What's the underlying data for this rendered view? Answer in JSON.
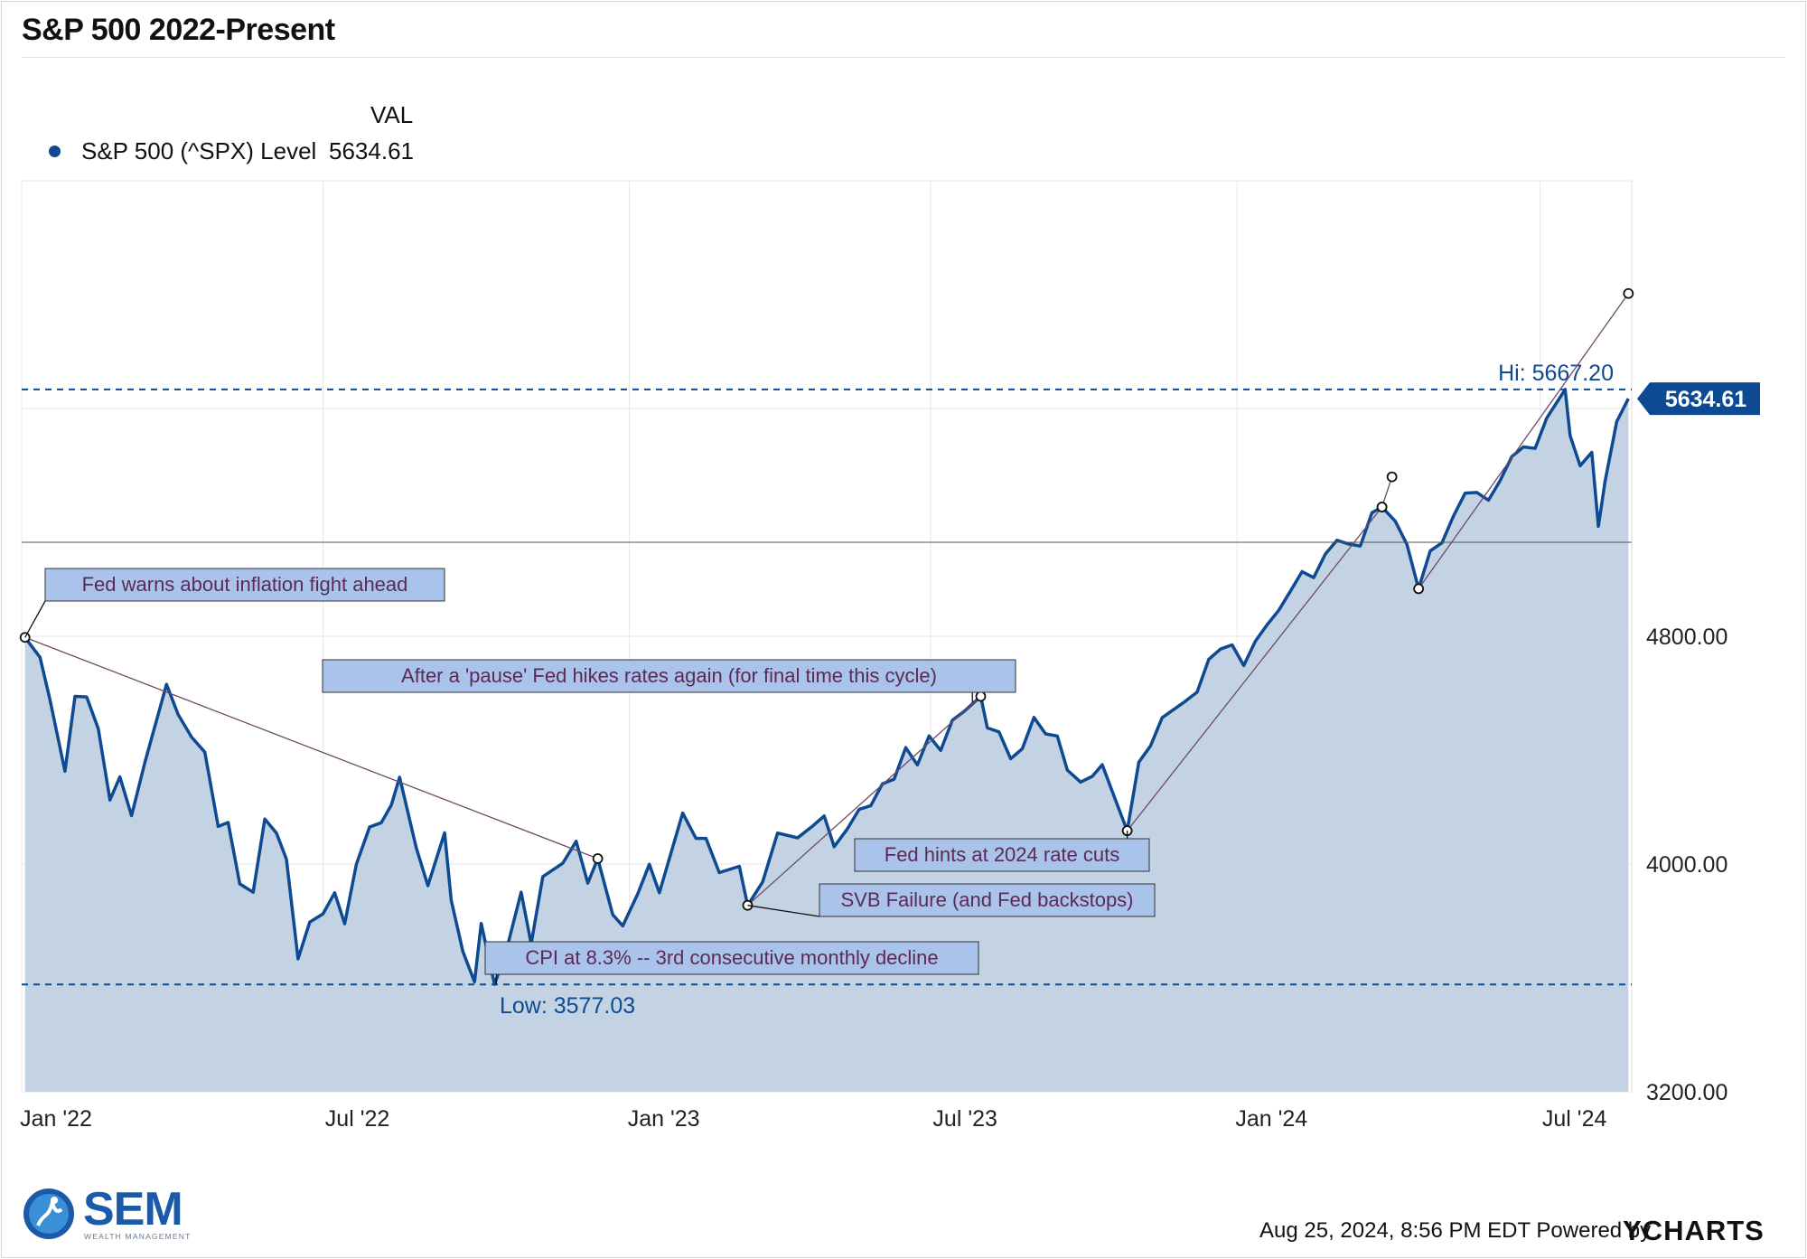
{
  "title": "S&P 500 2022-Present",
  "legend": {
    "column_header": "VAL",
    "series_name": "S&P 500 (^SPX) Level",
    "series_value": "5634.61"
  },
  "footer": {
    "date_text": "Aug 25, 2024, 8:56 PM EDT Powered by",
    "brand": "YCHARTS"
  },
  "logo": {
    "name": "SEM",
    "subtitle": "WEALTH MANAGEMENT"
  },
  "colors": {
    "line": "#0d4a91",
    "area": "#c4d3e3",
    "annotation_fill": "#a9c3ea",
    "annotation_text": "#5c2a55",
    "badge": "#0d4a91"
  },
  "chart_data": {
    "type": "area",
    "title": "S&P 500 2022-Present",
    "xlabel": "",
    "ylabel": "",
    "x_tick_labels": [
      "Jan '22",
      "Jul '22",
      "Jan '23",
      "Jul '23",
      "Jan '24",
      "Jul '24"
    ],
    "y_tick_labels": [
      "3200.00",
      "4000.00",
      "4800.00"
    ],
    "y_ticks": [
      3200,
      4000,
      4800
    ],
    "ylim": [
      3200,
      6400
    ],
    "xlim": [
      "2022-01-01",
      "2024-08-25"
    ],
    "grid": true,
    "legend_position": "top-left",
    "current_label": "5634.61",
    "current_value": 5634.61,
    "high_label": "Hi: 5667.20",
    "high_value": 5667.2,
    "low_label": "Low: 3577.03",
    "low_value": 3577.03,
    "reference_line_value": 5130,
    "series": [
      {
        "name": "S&P 500 (^SPX) Level",
        "points": [
          [
            "2022-01-03",
            4796
          ],
          [
            "2022-01-12",
            4726
          ],
          [
            "2022-01-18",
            4577
          ],
          [
            "2022-01-27",
            4326
          ],
          [
            "2022-02-02",
            4589
          ],
          [
            "2022-02-09",
            4587
          ],
          [
            "2022-02-16",
            4475
          ],
          [
            "2022-02-23",
            4225
          ],
          [
            "2022-03-01",
            4306
          ],
          [
            "2022-03-08",
            4170
          ],
          [
            "2022-03-16",
            4357
          ],
          [
            "2022-03-29",
            4631
          ],
          [
            "2022-04-05",
            4525
          ],
          [
            "2022-04-13",
            4446
          ],
          [
            "2022-04-21",
            4393
          ],
          [
            "2022-04-29",
            4132
          ],
          [
            "2022-05-05",
            4146
          ],
          [
            "2022-05-12",
            3930
          ],
          [
            "2022-05-20",
            3901
          ],
          [
            "2022-05-27",
            4158
          ],
          [
            "2022-06-03",
            4109
          ],
          [
            "2022-06-09",
            4017
          ],
          [
            "2022-06-16",
            3667
          ],
          [
            "2022-06-23",
            3796
          ],
          [
            "2022-07-01",
            3825
          ],
          [
            "2022-07-08",
            3899
          ],
          [
            "2022-07-14",
            3790
          ],
          [
            "2022-07-21",
            3999
          ],
          [
            "2022-07-29",
            4130
          ],
          [
            "2022-08-05",
            4145
          ],
          [
            "2022-08-11",
            4207
          ],
          [
            "2022-08-16",
            4305
          ],
          [
            "2022-08-26",
            4057
          ],
          [
            "2022-09-02",
            3924
          ],
          [
            "2022-09-12",
            4110
          ],
          [
            "2022-09-16",
            3873
          ],
          [
            "2022-09-23",
            3693
          ],
          [
            "2022-09-30",
            3586
          ],
          [
            "2022-10-04",
            3791
          ],
          [
            "2022-10-12",
            3577
          ],
          [
            "2022-10-19",
            3695
          ],
          [
            "2022-10-28",
            3901
          ],
          [
            "2022-11-03",
            3720
          ],
          [
            "2022-11-10",
            3956
          ],
          [
            "2022-11-22",
            4003
          ],
          [
            "2022-11-30",
            4080
          ],
          [
            "2022-12-07",
            3933
          ],
          [
            "2022-12-13",
            4019
          ],
          [
            "2022-12-22",
            3822
          ],
          [
            "2022-12-28",
            3783
          ],
          [
            "2023-01-06",
            3895
          ],
          [
            "2023-01-13",
            3999
          ],
          [
            "2023-01-19",
            3899
          ],
          [
            "2023-02-02",
            4179
          ],
          [
            "2023-02-10",
            4090
          ],
          [
            "2023-02-16",
            4090
          ],
          [
            "2023-02-24",
            3970
          ],
          [
            "2023-03-02",
            3981
          ],
          [
            "2023-03-08",
            3992
          ],
          [
            "2023-03-13",
            3855
          ],
          [
            "2023-03-22",
            3937
          ],
          [
            "2023-03-31",
            4109
          ],
          [
            "2023-04-12",
            4092
          ],
          [
            "2023-04-21",
            4133
          ],
          [
            "2023-04-28",
            4169
          ],
          [
            "2023-05-04",
            4061
          ],
          [
            "2023-05-12",
            4124
          ],
          [
            "2023-05-19",
            4192
          ],
          [
            "2023-05-26",
            4205
          ],
          [
            "2023-06-02",
            4282
          ],
          [
            "2023-06-09",
            4298
          ],
          [
            "2023-06-16",
            4409
          ],
          [
            "2023-06-23",
            4348
          ],
          [
            "2023-06-30",
            4450
          ],
          [
            "2023-07-07",
            4399
          ],
          [
            "2023-07-14",
            4505
          ],
          [
            "2023-07-21",
            4536
          ],
          [
            "2023-07-31",
            4589
          ],
          [
            "2023-08-04",
            4478
          ],
          [
            "2023-08-11",
            4464
          ],
          [
            "2023-08-18",
            4370
          ],
          [
            "2023-08-25",
            4405
          ],
          [
            "2023-09-01",
            4515
          ],
          [
            "2023-09-08",
            4457
          ],
          [
            "2023-09-15",
            4450
          ],
          [
            "2023-09-21",
            4330
          ],
          [
            "2023-09-29",
            4288
          ],
          [
            "2023-10-06",
            4308
          ],
          [
            "2023-10-12",
            4349
          ],
          [
            "2023-10-20",
            4224
          ],
          [
            "2023-10-27",
            4117
          ],
          [
            "2023-11-03",
            4358
          ],
          [
            "2023-11-10",
            4415
          ],
          [
            "2023-11-17",
            4514
          ],
          [
            "2023-11-30",
            4568
          ],
          [
            "2023-12-08",
            4604
          ],
          [
            "2023-12-15",
            4719
          ],
          [
            "2023-12-22",
            4755
          ],
          [
            "2023-12-29",
            4770
          ],
          [
            "2024-01-05",
            4697
          ],
          [
            "2024-01-12",
            4783
          ],
          [
            "2024-01-19",
            4840
          ],
          [
            "2024-01-26",
            4891
          ],
          [
            "2024-02-02",
            4958
          ],
          [
            "2024-02-09",
            5027
          ],
          [
            "2024-02-16",
            5006
          ],
          [
            "2024-02-23",
            5089
          ],
          [
            "2024-03-01",
            5137
          ],
          [
            "2024-03-08",
            5124
          ],
          [
            "2024-03-15",
            5117
          ],
          [
            "2024-03-22",
            5234
          ],
          [
            "2024-03-28",
            5254
          ],
          [
            "2024-04-05",
            5204
          ],
          [
            "2024-04-12",
            5123
          ],
          [
            "2024-04-19",
            4967
          ],
          [
            "2024-04-26",
            5100
          ],
          [
            "2024-05-03",
            5128
          ],
          [
            "2024-05-10",
            5223
          ],
          [
            "2024-05-17",
            5303
          ],
          [
            "2024-05-24",
            5305
          ],
          [
            "2024-05-31",
            5278
          ],
          [
            "2024-06-07",
            5347
          ],
          [
            "2024-06-14",
            5431
          ],
          [
            "2024-06-21",
            5465
          ],
          [
            "2024-06-28",
            5460
          ],
          [
            "2024-07-05",
            5567
          ],
          [
            "2024-07-16",
            5667
          ],
          [
            "2024-07-19",
            5505
          ],
          [
            "2024-07-25",
            5399
          ],
          [
            "2024-08-01",
            5446
          ],
          [
            "2024-08-05",
            5186
          ],
          [
            "2024-08-09",
            5344
          ],
          [
            "2024-08-16",
            5554
          ],
          [
            "2024-08-23",
            5634.61
          ]
        ]
      }
    ],
    "annotations": [
      {
        "text": "Fed warns about inflation fight ahead",
        "anchor_date": "2022-01-03",
        "anchor_value": 4796
      },
      {
        "text": "After a 'pause' Fed hikes rates again (for final time this cycle)",
        "anchor_date": "2023-07-26",
        "anchor_value": 4567
      },
      {
        "text": "Fed hints at 2024 rate cuts",
        "anchor_date": "2023-10-27",
        "anchor_value": 4117
      },
      {
        "text": "SVB Failure (and Fed backstops)",
        "anchor_date": "2023-03-13",
        "anchor_value": 3855
      },
      {
        "text": "CPI at 8.3% -- 3rd consecutive monthly decline",
        "anchor_date": "2022-10-13",
        "anchor_value": 3577
      }
    ],
    "trend_lines": [
      {
        "from": [
          "2022-01-03",
          4796
        ],
        "to": [
          "2022-12-13",
          4019
        ]
      },
      {
        "from": [
          "2023-03-13",
          3855
        ],
        "to": [
          "2023-07-31",
          4589
        ]
      },
      {
        "from": [
          "2023-10-27",
          4117
        ],
        "to": [
          "2024-03-28",
          5254
        ]
      },
      {
        "from": [
          "2024-03-28",
          5254
        ],
        "to": [
          "2024-04-03",
          5360
        ]
      },
      {
        "from": [
          "2024-04-19",
          4967
        ],
        "to": [
          "2024-08-23",
          6004
        ]
      }
    ]
  }
}
